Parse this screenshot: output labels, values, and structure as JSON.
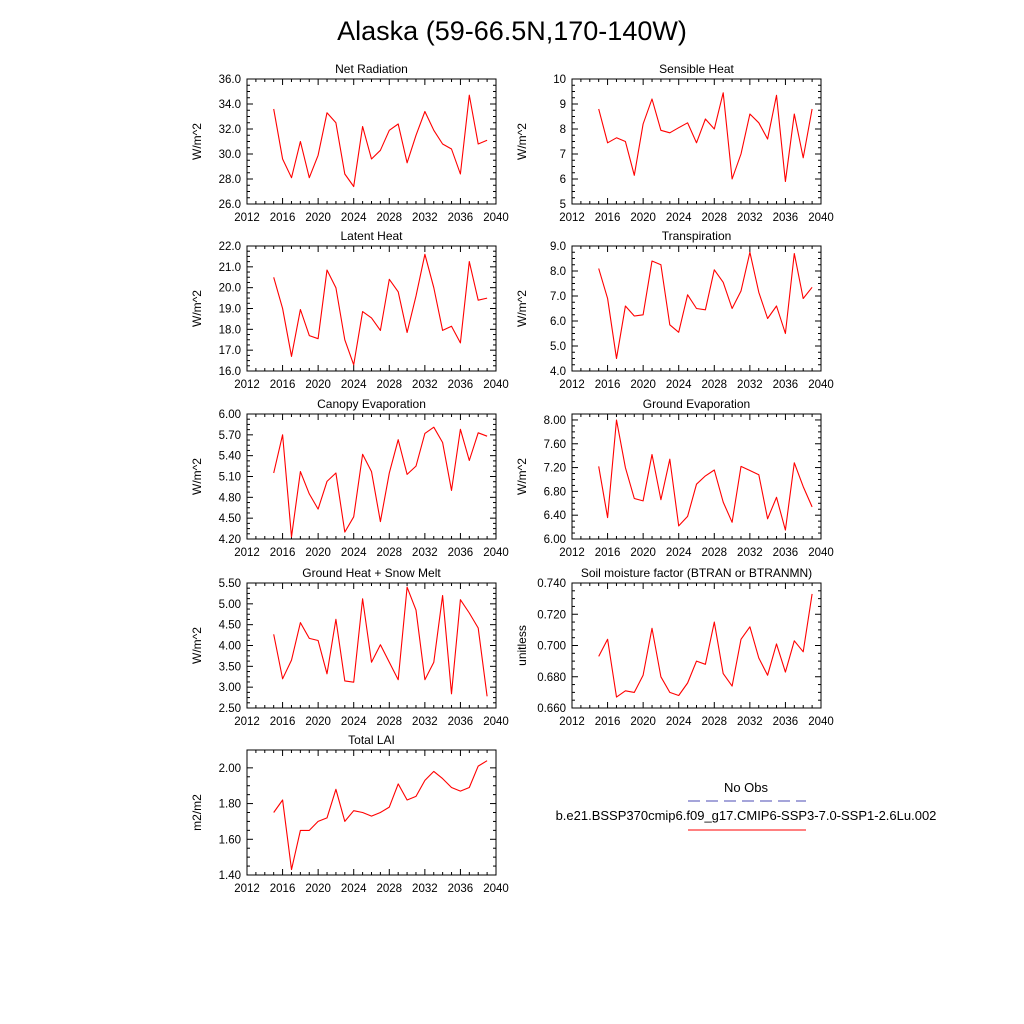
{
  "figure": {
    "title": "Alaska (59-66.5N,170-140W)",
    "legend": {
      "obs_label": "No Obs",
      "obs_color": "#4b4bb4",
      "model_label": "b.e21.BSSP370cmip6.f09_g17.CMIP6-SSP3-7.0-SSP1-2.6Lu.002",
      "model_color": "#ff0000"
    }
  },
  "chart_data": [
    {
      "type": "line",
      "title": "Net Radiation",
      "xlabel": "",
      "ylabel": "W/m^2",
      "xlim": [
        2012,
        2040
      ],
      "xticks": [
        2012,
        2016,
        2020,
        2024,
        2028,
        2032,
        2036,
        2040
      ],
      "ylim": [
        26.0,
        36.0
      ],
      "yticks": [
        "26.0",
        "28.0",
        "30.0",
        "32.0",
        "34.0",
        "36.0"
      ],
      "series": [
        {
          "color": "#ff0000",
          "x": [
            2015,
            2016,
            2017,
            2018,
            2019,
            2020,
            2021,
            2022,
            2023,
            2024,
            2025,
            2026,
            2027,
            2028,
            2029,
            2030,
            2031,
            2032,
            2033,
            2034,
            2035,
            2036,
            2037,
            2038,
            2039
          ],
          "values": [
            33.6,
            29.6,
            28.1,
            31.0,
            28.1,
            29.9,
            33.3,
            32.5,
            28.4,
            27.4,
            32.2,
            29.6,
            30.3,
            31.9,
            32.4,
            29.3,
            31.5,
            33.4,
            31.9,
            30.8,
            30.4,
            28.4,
            34.7,
            30.8,
            31.1
          ]
        }
      ]
    },
    {
      "type": "line",
      "title": "Sensible Heat",
      "xlabel": "",
      "ylabel": "W/m^2",
      "xlim": [
        2012,
        2040
      ],
      "xticks": [
        2012,
        2016,
        2020,
        2024,
        2028,
        2032,
        2036,
        2040
      ],
      "ylim": [
        5,
        10
      ],
      "yticks": [
        "5",
        "6",
        "7",
        "8",
        "9",
        "10"
      ],
      "series": [
        {
          "color": "#ff0000",
          "x": [
            2015,
            2016,
            2017,
            2018,
            2019,
            2020,
            2021,
            2022,
            2023,
            2024,
            2025,
            2026,
            2027,
            2028,
            2029,
            2030,
            2031,
            2032,
            2033,
            2034,
            2035,
            2036,
            2037,
            2038,
            2039
          ],
          "values": [
            8.8,
            7.45,
            7.65,
            7.5,
            6.15,
            8.2,
            9.2,
            7.95,
            7.85,
            8.05,
            8.25,
            7.45,
            8.4,
            8.0,
            9.45,
            6.0,
            7.0,
            8.6,
            8.25,
            7.6,
            9.35,
            5.9,
            8.6,
            6.85,
            8.8
          ]
        }
      ]
    },
    {
      "type": "line",
      "title": "Latent Heat",
      "xlabel": "",
      "ylabel": "W/m^2",
      "xlim": [
        2012,
        2040
      ],
      "xticks": [
        2012,
        2016,
        2020,
        2024,
        2028,
        2032,
        2036,
        2040
      ],
      "ylim": [
        16.0,
        22.0
      ],
      "yticks": [
        "16.0",
        "17.0",
        "18.0",
        "19.0",
        "20.0",
        "21.0",
        "22.0"
      ],
      "series": [
        {
          "color": "#ff0000",
          "x": [
            2015,
            2016,
            2017,
            2018,
            2019,
            2020,
            2021,
            2022,
            2023,
            2024,
            2025,
            2026,
            2027,
            2028,
            2029,
            2030,
            2031,
            2032,
            2033,
            2034,
            2035,
            2036,
            2037,
            2038,
            2039
          ],
          "values": [
            20.5,
            19.0,
            16.7,
            18.95,
            17.7,
            17.55,
            20.85,
            20.0,
            17.5,
            16.3,
            18.85,
            18.55,
            17.95,
            20.4,
            19.8,
            17.85,
            19.6,
            21.6,
            20.0,
            17.95,
            18.15,
            17.35,
            21.25,
            19.4,
            19.5
          ]
        }
      ]
    },
    {
      "type": "line",
      "title": "Transpiration",
      "xlabel": "",
      "ylabel": "W/m^2",
      "xlim": [
        2012,
        2040
      ],
      "xticks": [
        2012,
        2016,
        2020,
        2024,
        2028,
        2032,
        2036,
        2040
      ],
      "ylim": [
        4.0,
        9.0
      ],
      "yticks": [
        "4.0",
        "5.0",
        "6.0",
        "7.0",
        "8.0",
        "9.0"
      ],
      "series": [
        {
          "color": "#ff0000",
          "x": [
            2015,
            2016,
            2017,
            2018,
            2019,
            2020,
            2021,
            2022,
            2023,
            2024,
            2025,
            2026,
            2027,
            2028,
            2029,
            2030,
            2031,
            2032,
            2033,
            2034,
            2035,
            2036,
            2037,
            2038,
            2039
          ],
          "values": [
            8.1,
            6.9,
            4.5,
            6.6,
            6.2,
            6.25,
            8.4,
            8.25,
            5.85,
            5.55,
            7.05,
            6.5,
            6.45,
            8.05,
            7.55,
            6.5,
            7.2,
            8.75,
            7.15,
            6.1,
            6.6,
            5.5,
            8.7,
            6.9,
            7.35
          ]
        }
      ]
    },
    {
      "type": "line",
      "title": "Canopy Evaporation",
      "xlabel": "",
      "ylabel": "W/m^2",
      "xlim": [
        2012,
        2040
      ],
      "xticks": [
        2012,
        2016,
        2020,
        2024,
        2028,
        2032,
        2036,
        2040
      ],
      "ylim": [
        4.2,
        6.0
      ],
      "yticks": [
        "4.20",
        "4.50",
        "4.80",
        "5.10",
        "5.40",
        "5.70",
        "6.00"
      ],
      "series": [
        {
          "color": "#ff0000",
          "x": [
            2015,
            2016,
            2017,
            2018,
            2019,
            2020,
            2021,
            2022,
            2023,
            2024,
            2025,
            2026,
            2027,
            2028,
            2029,
            2030,
            2031,
            2032,
            2033,
            2034,
            2035,
            2036,
            2037,
            2038,
            2039
          ],
          "values": [
            5.15,
            5.7,
            4.23,
            5.17,
            4.85,
            4.63,
            5.03,
            5.15,
            4.3,
            4.52,
            5.42,
            5.17,
            4.45,
            5.15,
            5.63,
            5.13,
            5.25,
            5.72,
            5.81,
            5.59,
            4.9,
            5.78,
            5.33,
            5.73,
            5.68
          ]
        }
      ]
    },
    {
      "type": "line",
      "title": "Ground Evaporation",
      "xlabel": "",
      "ylabel": "W/m^2",
      "xlim": [
        2012,
        2040
      ],
      "xticks": [
        2012,
        2016,
        2020,
        2024,
        2028,
        2032,
        2036,
        2040
      ],
      "ylim": [
        6.0,
        8.1
      ],
      "yticks": [
        "6.00",
        "6.40",
        "6.80",
        "7.20",
        "7.60",
        "8.00"
      ],
      "series": [
        {
          "color": "#ff0000",
          "x": [
            2015,
            2016,
            2017,
            2018,
            2019,
            2020,
            2021,
            2022,
            2023,
            2024,
            2025,
            2026,
            2027,
            2028,
            2029,
            2030,
            2031,
            2032,
            2033,
            2034,
            2035,
            2036,
            2037,
            2038,
            2039
          ],
          "values": [
            7.22,
            6.36,
            8.0,
            7.2,
            6.68,
            6.64,
            7.42,
            6.66,
            7.34,
            6.22,
            6.38,
            6.92,
            7.06,
            7.16,
            6.62,
            6.28,
            7.22,
            7.15,
            7.08,
            6.34,
            6.7,
            6.15,
            7.28,
            6.88,
            6.54
          ]
        }
      ]
    },
    {
      "type": "line",
      "title": "Ground Heat + Snow Melt",
      "xlabel": "",
      "ylabel": "W/m^2",
      "xlim": [
        2012,
        2040
      ],
      "xticks": [
        2012,
        2016,
        2020,
        2024,
        2028,
        2032,
        2036,
        2040
      ],
      "ylim": [
        2.5,
        5.5
      ],
      "yticks": [
        "2.50",
        "3.00",
        "3.50",
        "4.00",
        "4.50",
        "5.00",
        "5.50"
      ],
      "series": [
        {
          "color": "#ff0000",
          "x": [
            2015,
            2016,
            2017,
            2018,
            2019,
            2020,
            2021,
            2022,
            2023,
            2024,
            2025,
            2026,
            2027,
            2028,
            2029,
            2030,
            2031,
            2032,
            2033,
            2034,
            2035,
            2036,
            2037,
            2038,
            2039
          ],
          "values": [
            4.27,
            3.2,
            3.65,
            4.55,
            4.17,
            4.12,
            3.32,
            4.63,
            3.15,
            3.12,
            5.12,
            3.6,
            4.02,
            3.6,
            3.18,
            5.4,
            4.85,
            3.18,
            3.6,
            5.2,
            2.84,
            5.1,
            4.78,
            4.42,
            2.78
          ]
        }
      ]
    },
    {
      "type": "line",
      "title": "Soil moisture factor (BTRAN or BTRANMN)",
      "xlabel": "",
      "ylabel": "unitless",
      "xlim": [
        2012,
        2040
      ],
      "xticks": [
        2012,
        2016,
        2020,
        2024,
        2028,
        2032,
        2036,
        2040
      ],
      "ylim": [
        0.66,
        0.74
      ],
      "yticks": [
        "0.660",
        "0.680",
        "0.700",
        "0.720",
        "0.740"
      ],
      "series": [
        {
          "color": "#ff0000",
          "x": [
            2015,
            2016,
            2017,
            2018,
            2019,
            2020,
            2021,
            2022,
            2023,
            2024,
            2025,
            2026,
            2027,
            2028,
            2029,
            2030,
            2031,
            2032,
            2033,
            2034,
            2035,
            2036,
            2037,
            2038,
            2039
          ],
          "values": [
            0.693,
            0.704,
            0.667,
            0.671,
            0.67,
            0.681,
            0.711,
            0.68,
            0.67,
            0.668,
            0.676,
            0.69,
            0.688,
            0.715,
            0.682,
            0.674,
            0.704,
            0.712,
            0.692,
            0.681,
            0.701,
            0.683,
            0.703,
            0.696,
            0.733
          ]
        }
      ]
    },
    {
      "type": "line",
      "title": "Total LAI",
      "xlabel": "",
      "ylabel": "m2/m2",
      "xlim": [
        2012,
        2040
      ],
      "xticks": [
        2012,
        2016,
        2020,
        2024,
        2028,
        2032,
        2036,
        2040
      ],
      "ylim": [
        1.4,
        2.1
      ],
      "yticks": [
        "1.40",
        "1.60",
        "1.80",
        "2.00"
      ],
      "series": [
        {
          "color": "#ff0000",
          "x": [
            2015,
            2016,
            2017,
            2018,
            2019,
            2020,
            2021,
            2022,
            2023,
            2024,
            2025,
            2026,
            2027,
            2028,
            2029,
            2030,
            2031,
            2032,
            2033,
            2034,
            2035,
            2036,
            2037,
            2038,
            2039
          ],
          "values": [
            1.75,
            1.82,
            1.43,
            1.65,
            1.65,
            1.7,
            1.72,
            1.88,
            1.7,
            1.76,
            1.75,
            1.73,
            1.75,
            1.78,
            1.91,
            1.82,
            1.84,
            1.93,
            1.98,
            1.94,
            1.89,
            1.87,
            1.89,
            2.01,
            2.04
          ]
        }
      ]
    }
  ]
}
